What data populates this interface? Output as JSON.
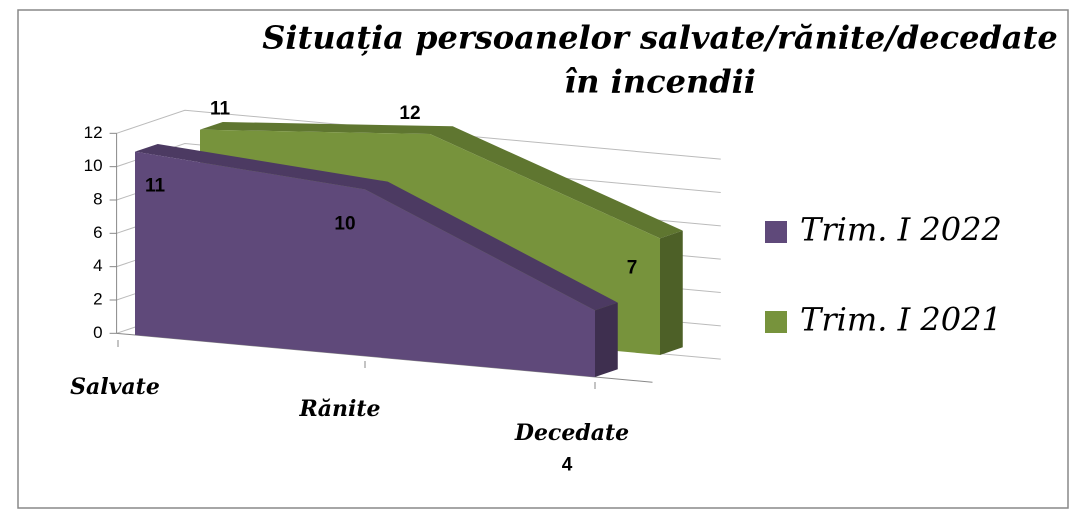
{
  "chart_data": {
    "type": "area3d",
    "title": [
      "Situația persoanelor salvate/rănite/decedate",
      "în incendii"
    ],
    "categories": [
      "Salvate",
      "Rănite",
      "Decedate"
    ],
    "series": [
      {
        "name": "Trim. I 2022",
        "color": "#5f497a",
        "values": [
          11,
          10,
          4
        ]
      },
      {
        "name": "Trim. I 2021",
        "color": "#77933c",
        "values": [
          11,
          12,
          7
        ]
      }
    ],
    "ylim": [
      0,
      12
    ],
    "yticks": [
      0,
      2,
      4,
      6,
      8,
      10,
      12
    ],
    "grid": true,
    "legend": "right"
  }
}
